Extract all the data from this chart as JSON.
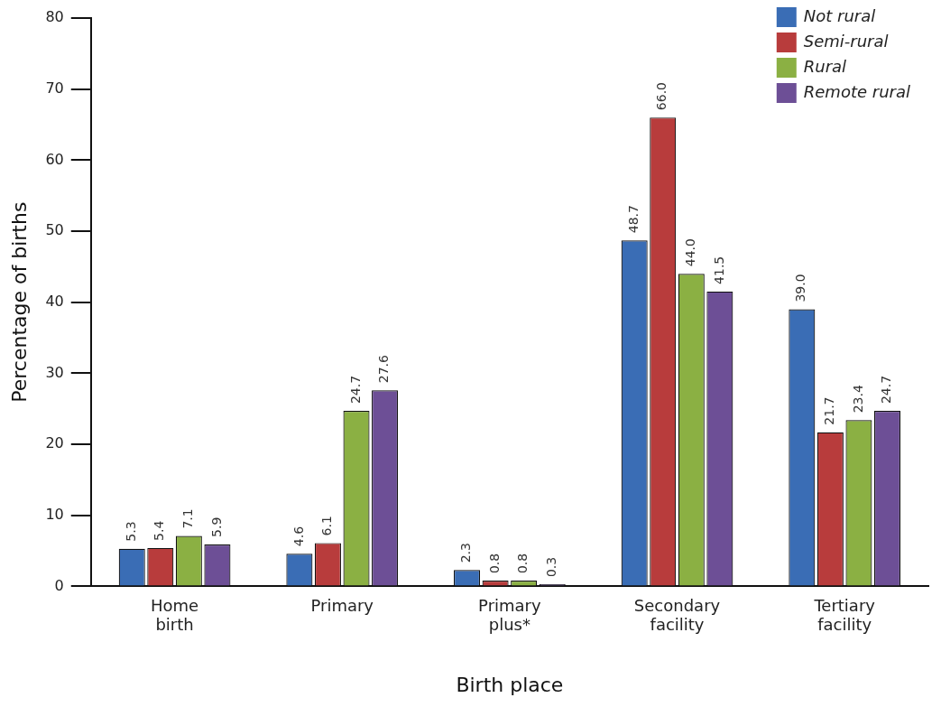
{
  "chart_data": {
    "type": "bar",
    "xlabel": "Birth place",
    "ylabel": "Percentage of births",
    "categories": [
      "Home birth",
      "Primary",
      "Primary plus*",
      "Secondary facility",
      "Tertiary facility"
    ],
    "series": [
      {
        "name": "Not rural",
        "color": "#3a6db5",
        "values": [
          5.3,
          4.6,
          2.3,
          48.7,
          39.0
        ],
        "value_labels": [
          "5.3",
          "4.6",
          "2.3",
          "48.7",
          "39.0"
        ]
      },
      {
        "name": "Semi-rural",
        "color": "#b83c3c",
        "values": [
          5.4,
          6.1,
          0.8,
          66.0,
          21.7
        ],
        "value_labels": [
          "5.4",
          "6.1",
          "0.8",
          "66.0",
          "21.7"
        ]
      },
      {
        "name": "Rural",
        "color": "#8bb043",
        "values": [
          7.1,
          24.7,
          0.8,
          44.0,
          23.4
        ],
        "value_labels": [
          "7.1",
          "24.7",
          "0.8",
          "44.0",
          "23.4"
        ]
      },
      {
        "name": "Remote rural",
        "color": "#6d4f96",
        "values": [
          5.9,
          27.6,
          0.3,
          41.5,
          24.7
        ],
        "value_labels": [
          "5.9",
          "27.6",
          "0.3",
          "41.5",
          "24.7"
        ]
      }
    ],
    "ylim": [
      0,
      80
    ],
    "yticks": [
      0,
      10,
      20,
      30,
      40,
      50,
      60,
      70,
      80
    ],
    "grid": false,
    "legend": "top right"
  }
}
